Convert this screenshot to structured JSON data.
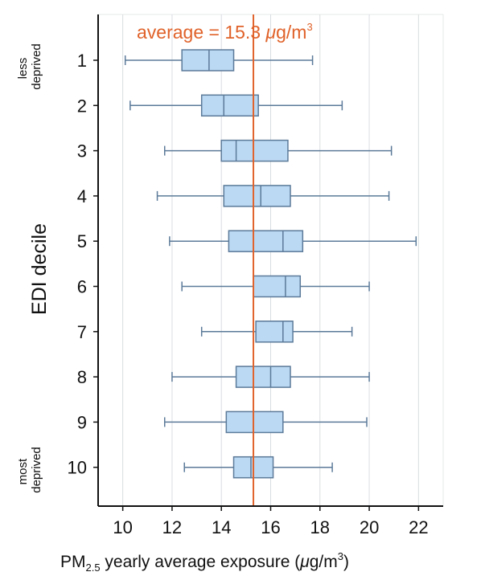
{
  "chart_data": {
    "type": "boxplot",
    "orientation": "horizontal",
    "ylabel": "EDI decile",
    "xlabel": {
      "prefix": "PM",
      "subscript": "2.5",
      "suffix": " yearly average exposure (",
      "mu": "μ",
      "unit": "g/m",
      "sup": "3",
      "close": ")"
    },
    "xlim": [
      9,
      23
    ],
    "x_ticks": [
      10,
      12,
      14,
      16,
      18,
      20,
      22
    ],
    "grid": "vertical",
    "categories": [
      "1",
      "2",
      "3",
      "4",
      "5",
      "6",
      "7",
      "8",
      "9",
      "10"
    ],
    "boxes": [
      {
        "category": "1",
        "whisker_low": 10.1,
        "q1": 12.4,
        "median": 13.5,
        "q3": 14.5,
        "whisker_high": 17.7
      },
      {
        "category": "2",
        "whisker_low": 10.3,
        "q1": 13.2,
        "median": 14.1,
        "q3": 15.5,
        "whisker_high": 18.9
      },
      {
        "category": "3",
        "whisker_low": 11.7,
        "q1": 14.0,
        "median": 14.6,
        "q3": 16.7,
        "whisker_high": 20.9
      },
      {
        "category": "4",
        "whisker_low": 11.4,
        "q1": 14.1,
        "median": 15.6,
        "q3": 16.8,
        "whisker_high": 20.8
      },
      {
        "category": "5",
        "whisker_low": 11.9,
        "q1": 14.3,
        "median": 16.5,
        "q3": 17.3,
        "whisker_high": 21.9
      },
      {
        "category": "6",
        "whisker_low": 12.4,
        "q1": 15.3,
        "median": 16.6,
        "q3": 17.2,
        "whisker_high": 20.0
      },
      {
        "category": "7",
        "whisker_low": 13.2,
        "q1": 15.4,
        "median": 16.5,
        "q3": 16.9,
        "whisker_high": 19.3
      },
      {
        "category": "8",
        "whisker_low": 12.0,
        "q1": 14.6,
        "median": 16.0,
        "q3": 16.8,
        "whisker_high": 20.0
      },
      {
        "category": "9",
        "whisker_low": 11.7,
        "q1": 14.2,
        "median": 15.3,
        "q3": 16.5,
        "whisker_high": 19.9
      },
      {
        "category": "10",
        "whisker_low": 12.5,
        "q1": 14.5,
        "median": 15.2,
        "q3": 16.1,
        "whisker_high": 18.5
      }
    ],
    "reference_line": {
      "value": 15.3,
      "label_prefix": "average = 15.3 ",
      "label_mu": "μ",
      "label_unit": "g/m",
      "label_sup": "3",
      "color": "#e0622a"
    },
    "side_labels": {
      "top": [
        "less",
        "deprived"
      ],
      "bottom": [
        "most",
        "deprived"
      ]
    },
    "colors": {
      "box_fill": "#bcd9f3",
      "box_stroke": "#5b7a99",
      "whisker": "#5b7a99",
      "median": "#5b7a99",
      "grid": "#d9dde0",
      "axis": "#111111"
    }
  }
}
